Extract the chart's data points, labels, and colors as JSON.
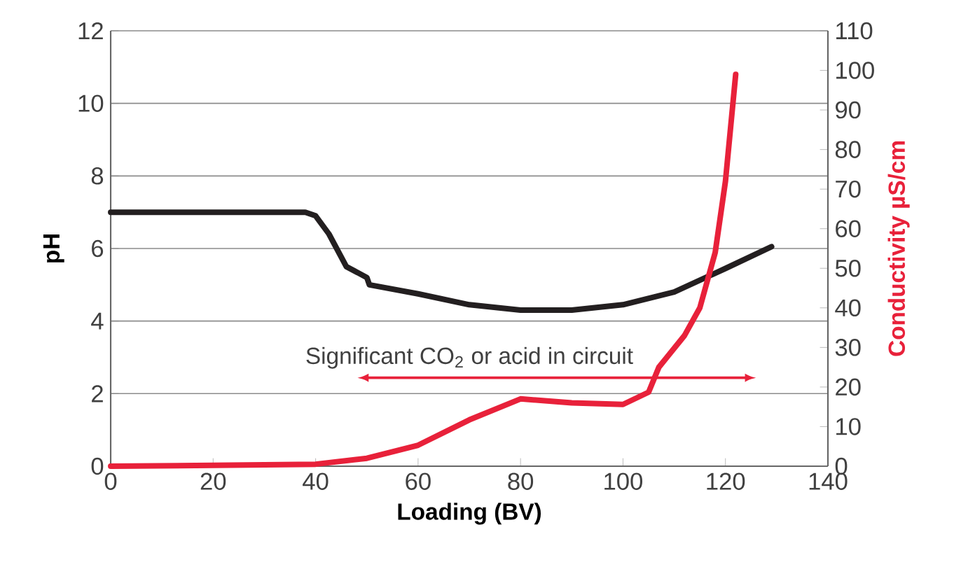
{
  "chart_data": {
    "type": "line",
    "xlabel": "Loading (BV)",
    "ylabel": "pH",
    "y2label": "Conductivity µS/cm",
    "xlim": [
      0,
      140
    ],
    "xticks": [
      0,
      20,
      40,
      60,
      80,
      100,
      120,
      140
    ],
    "ylim": [
      0,
      12
    ],
    "yticks": [
      0,
      2,
      4,
      6,
      8,
      10,
      12
    ],
    "y2lim": [
      0,
      110
    ],
    "y2ticks": [
      0,
      10,
      20,
      30,
      40,
      50,
      60,
      70,
      80,
      90,
      100,
      110
    ],
    "grid": "y",
    "marker": "none",
    "line_style": "solid",
    "series": [
      {
        "color": "#231f20",
        "x": [
          0,
          10,
          20,
          30,
          38,
          40,
          42.6,
          46,
          50,
          50.5,
          60,
          70,
          80,
          90,
          100,
          110,
          120,
          129
        ],
        "values": [
          7,
          7,
          7,
          7,
          7,
          6.9,
          6.4,
          5.5,
          5.2,
          5.0,
          4.75,
          4.45,
          4.3,
          4.3,
          4.45,
          4.8,
          5.45,
          6.05
        ]
      },
      {
        "color": "#e8213a",
        "axis": "y2",
        "x": [
          0,
          20,
          40,
          50,
          60,
          70,
          80,
          90,
          100,
          105,
          107,
          112,
          115,
          118,
          120,
          122
        ],
        "values": [
          0,
          0.2,
          0.5,
          2,
          5.3,
          11.7,
          17,
          16,
          15.6,
          18.7,
          25,
          33,
          40,
          54,
          72,
          99
        ]
      }
    ],
    "annotations": [
      "Significant CO$_{2}$ or acid in circuit"
    ]
  }
}
